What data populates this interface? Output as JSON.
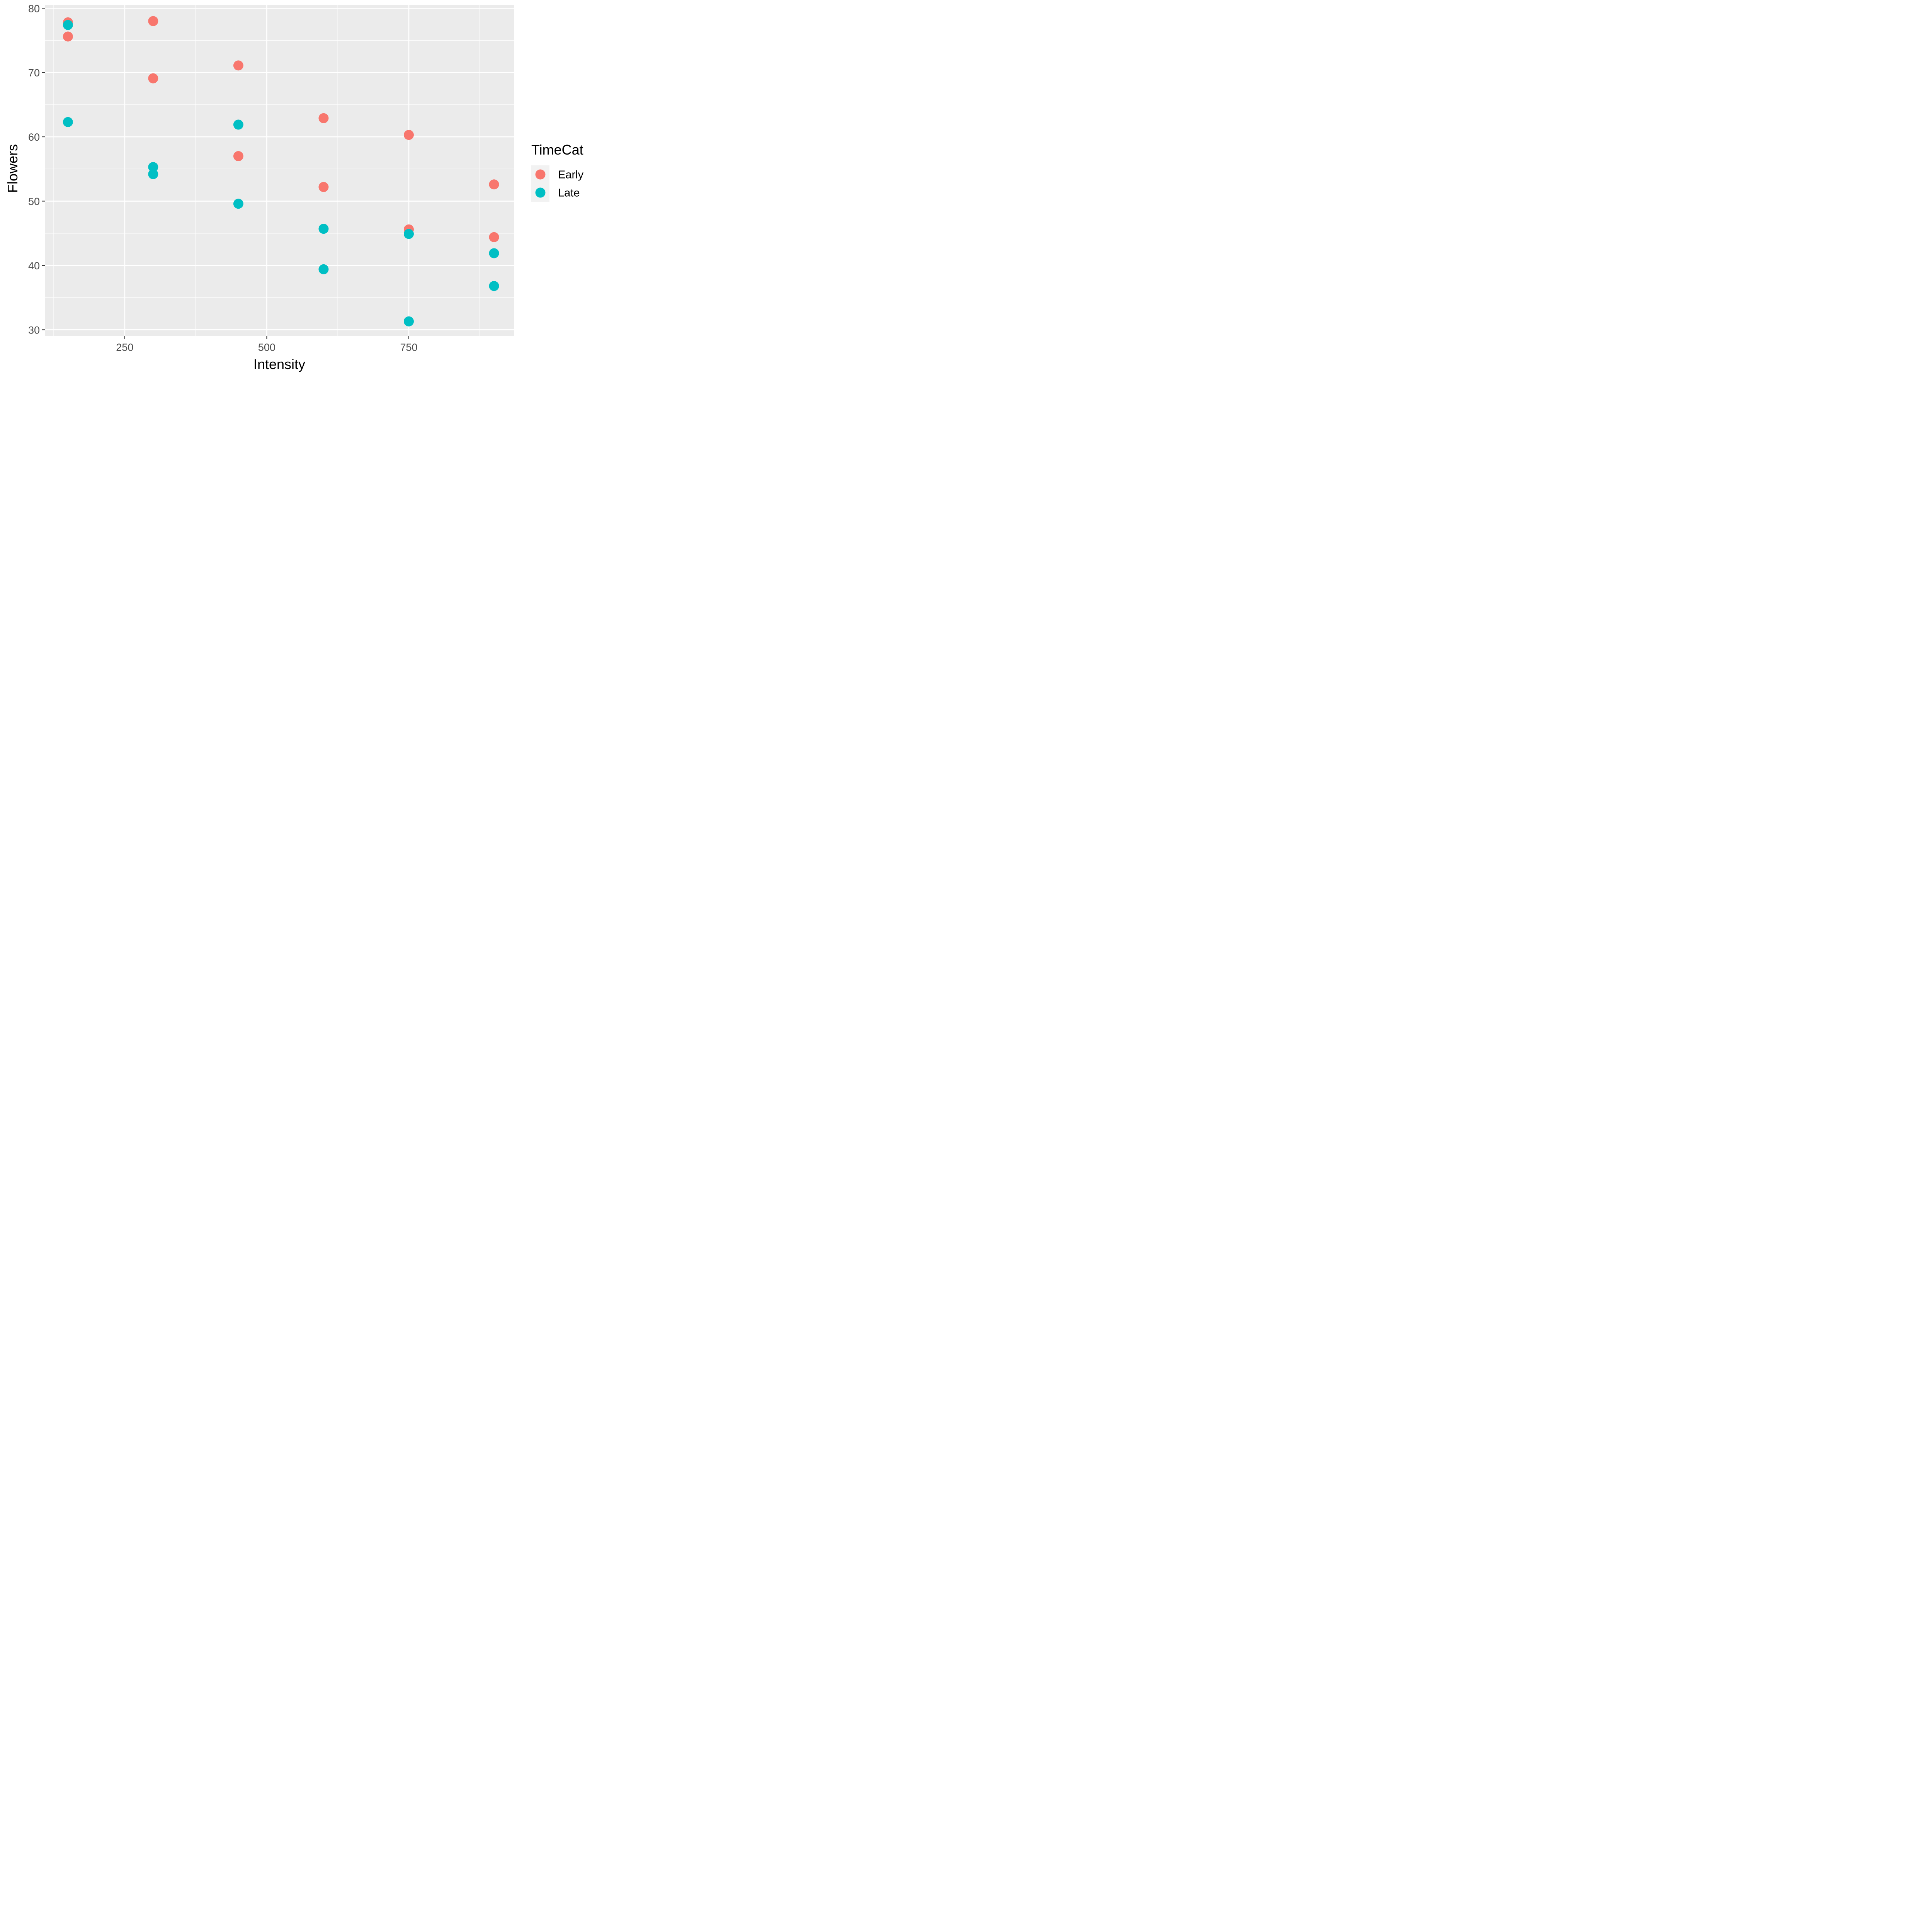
{
  "chart_data": {
    "type": "scatter",
    "xlabel": "Intensity",
    "ylabel": "Flowers",
    "xlim": [
      110,
      935
    ],
    "ylim": [
      29,
      80.5
    ],
    "x_ticks": [
      250,
      500,
      750
    ],
    "x_tick_labels": [
      "250",
      "500",
      "750"
    ],
    "x_minor_ticks": [
      125,
      375,
      625,
      875
    ],
    "y_ticks": [
      30,
      40,
      50,
      60,
      70,
      80
    ],
    "y_tick_labels": [
      "30",
      "40",
      "50",
      "60",
      "70",
      "80"
    ],
    "y_minor_ticks": [
      35,
      45,
      55,
      65,
      75
    ],
    "grid": true,
    "background": "#ebebeb",
    "legend": {
      "title": "TimeCat",
      "position": "right"
    },
    "series": [
      {
        "name": "Early",
        "color": "#f8766d",
        "points": [
          {
            "x": 150,
            "y": 77.8
          },
          {
            "x": 150,
            "y": 75.6
          },
          {
            "x": 300,
            "y": 78.0
          },
          {
            "x": 300,
            "y": 69.1
          },
          {
            "x": 450,
            "y": 71.1
          },
          {
            "x": 450,
            "y": 57.0
          },
          {
            "x": 600,
            "y": 62.9
          },
          {
            "x": 600,
            "y": 52.2
          },
          {
            "x": 750,
            "y": 60.3
          },
          {
            "x": 750,
            "y": 45.6
          },
          {
            "x": 900,
            "y": 52.6
          },
          {
            "x": 900,
            "y": 44.4
          }
        ]
      },
      {
        "name": "Late",
        "color": "#00bfc4",
        "points": [
          {
            "x": 150,
            "y": 77.4
          },
          {
            "x": 150,
            "y": 62.3
          },
          {
            "x": 300,
            "y": 55.3
          },
          {
            "x": 300,
            "y": 54.2
          },
          {
            "x": 450,
            "y": 61.9
          },
          {
            "x": 450,
            "y": 49.6
          },
          {
            "x": 600,
            "y": 45.7
          },
          {
            "x": 600,
            "y": 39.4
          },
          {
            "x": 750,
            "y": 44.9
          },
          {
            "x": 750,
            "y": 31.3
          },
          {
            "x": 900,
            "y": 41.9
          },
          {
            "x": 900,
            "y": 36.8
          }
        ]
      }
    ]
  }
}
